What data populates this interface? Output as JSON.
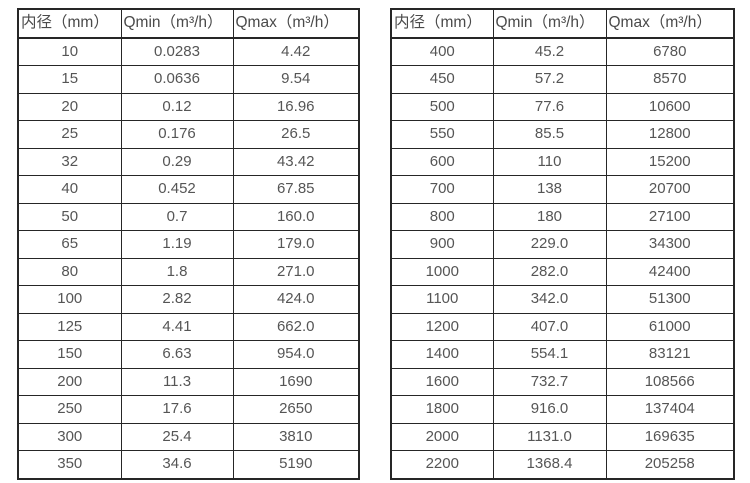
{
  "colors": {
    "background": "#ffffff",
    "table_border": "#262626",
    "header_text": "#4a4a4a",
    "cell_text": "#555555"
  },
  "tables": [
    {
      "name": "flow-rate-table-small-diameters",
      "headers": [
        "内径（mm）",
        "Qmin（m³/h）",
        "Qmax（m³/h）"
      ],
      "rows": [
        [
          "10",
          "0.0283",
          "4.42"
        ],
        [
          "15",
          "0.0636",
          "9.54"
        ],
        [
          "20",
          "0.12",
          "16.96"
        ],
        [
          "25",
          "0.176",
          "26.5"
        ],
        [
          "32",
          "0.29",
          "43.42"
        ],
        [
          "40",
          "0.452",
          "67.85"
        ],
        [
          "50",
          "0.7",
          "160.0"
        ],
        [
          "65",
          "1.19",
          "179.0"
        ],
        [
          "80",
          "1.8",
          "271.0"
        ],
        [
          "100",
          "2.82",
          "424.0"
        ],
        [
          "125",
          "4.41",
          "662.0"
        ],
        [
          "150",
          "6.63",
          "954.0"
        ],
        [
          "200",
          "11.3",
          "1690"
        ],
        [
          "250",
          "17.6",
          "2650"
        ],
        [
          "300",
          "25.4",
          "3810"
        ],
        [
          "350",
          "34.6",
          "5190"
        ]
      ]
    },
    {
      "name": "flow-rate-table-large-diameters",
      "headers": [
        "内径（mm）",
        "Qmin（m³/h）",
        "Qmax（m³/h）"
      ],
      "rows": [
        [
          "400",
          "45.2",
          "6780"
        ],
        [
          "450",
          "57.2",
          "8570"
        ],
        [
          "500",
          "77.6",
          "10600"
        ],
        [
          "550",
          "85.5",
          "12800"
        ],
        [
          "600",
          "110",
          "15200"
        ],
        [
          "700",
          "138",
          "20700"
        ],
        [
          "800",
          "180",
          "27100"
        ],
        [
          "900",
          "229.0",
          "34300"
        ],
        [
          "1000",
          "282.0",
          "42400"
        ],
        [
          "1100",
          "342.0",
          "51300"
        ],
        [
          "1200",
          "407.0",
          "61000"
        ],
        [
          "1400",
          "554.1",
          "83121"
        ],
        [
          "1600",
          "732.7",
          "108566"
        ],
        [
          "1800",
          "916.0",
          "137404"
        ],
        [
          "2000",
          "1131.0",
          "169635"
        ],
        [
          "2200",
          "1368.4",
          "205258"
        ]
      ]
    }
  ],
  "chart_data": [
    {
      "type": "table",
      "columns": [
        "内径（mm）",
        "Qmin（m³/h）",
        "Qmax（m³/h）"
      ],
      "rows": [
        [
          10,
          0.0283,
          4.42
        ],
        [
          15,
          0.0636,
          9.54
        ],
        [
          20,
          0.12,
          16.96
        ],
        [
          25,
          0.176,
          26.5
        ],
        [
          32,
          0.29,
          43.42
        ],
        [
          40,
          0.452,
          67.85
        ],
        [
          50,
          0.7,
          160.0
        ],
        [
          65,
          1.19,
          179.0
        ],
        [
          80,
          1.8,
          271.0
        ],
        [
          100,
          2.82,
          424.0
        ],
        [
          125,
          4.41,
          662.0
        ],
        [
          150,
          6.63,
          954.0
        ],
        [
          200,
          11.3,
          1690
        ],
        [
          250,
          17.6,
          2650
        ],
        [
          300,
          25.4,
          3810
        ],
        [
          350,
          34.6,
          5190
        ]
      ]
    },
    {
      "type": "table",
      "columns": [
        "内径（mm）",
        "Qmin（m³/h）",
        "Qmax（m³/h）"
      ],
      "rows": [
        [
          400,
          45.2,
          6780
        ],
        [
          450,
          57.2,
          8570
        ],
        [
          500,
          77.6,
          10600
        ],
        [
          550,
          85.5,
          12800
        ],
        [
          600,
          110,
          15200
        ],
        [
          700,
          138,
          20700
        ],
        [
          800,
          180,
          27100
        ],
        [
          900,
          229.0,
          34300
        ],
        [
          1000,
          282.0,
          42400
        ],
        [
          1100,
          342.0,
          51300
        ],
        [
          1200,
          407.0,
          61000
        ],
        [
          1400,
          554.1,
          83121
        ],
        [
          1600,
          732.7,
          108566
        ],
        [
          1800,
          916.0,
          137404
        ],
        [
          2000,
          1131.0,
          169635
        ],
        [
          2200,
          1368.4,
          205258
        ]
      ]
    }
  ]
}
